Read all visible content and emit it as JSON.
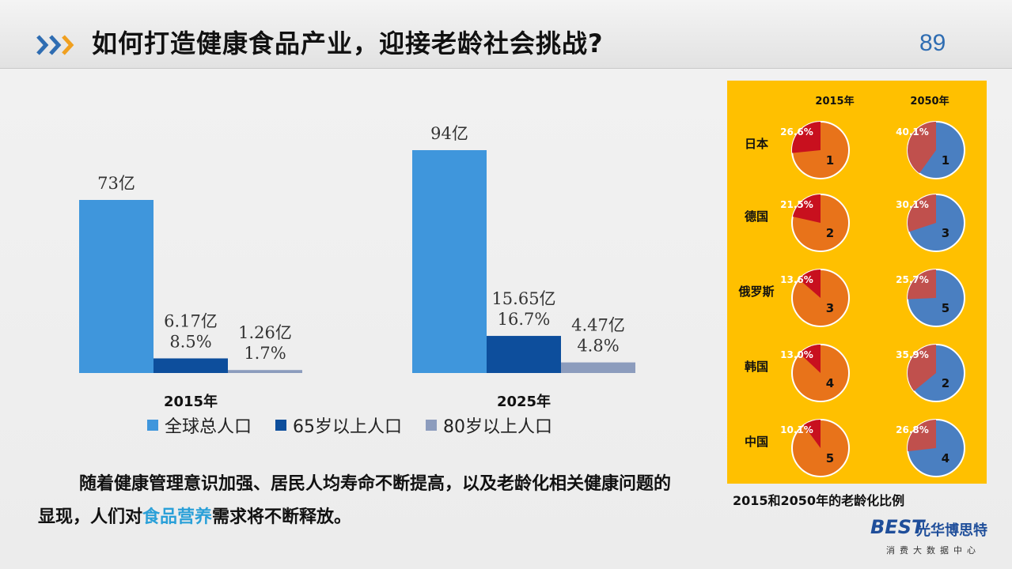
{
  "header": {
    "title": "如何打造健康食品产业，迎接老龄社会挑战?",
    "page_number": "89",
    "accent_color": "#2f6db2",
    "arrow_colors": [
      "#2f6db2",
      "#2f6db2",
      "#f0a020"
    ]
  },
  "chart_data": [
    {
      "type": "bar",
      "categories": [
        "2015年",
        "2025年"
      ],
      "series": [
        {
          "name": "全球总人口",
          "values": [
            73,
            94
          ],
          "color": "#3f96dc",
          "labels": [
            [
              "73亿"
            ],
            [
              "94亿"
            ]
          ]
        },
        {
          "name": "65岁以上人口",
          "values": [
            6.17,
            15.65
          ],
          "color": "#0d4e9c",
          "labels": [
            [
              "6.17亿",
              "8.5%"
            ],
            [
              "15.65亿",
              "16.7%"
            ]
          ]
        },
        {
          "name": "80岁以上人口",
          "values": [
            1.26,
            4.47
          ],
          "color": "#8c9cbd",
          "labels": [
            [
              "1.26亿",
              "1.7%"
            ],
            [
              "4.47亿",
              "4.8%"
            ]
          ]
        }
      ],
      "ylim": [
        0,
        100
      ],
      "grid": false,
      "legend": "bottom"
    },
    {
      "type": "pie",
      "columns": [
        "2015年",
        "2050年"
      ],
      "rows": [
        {
          "country": "日本",
          "2015": {
            "share": 26.6,
            "rank": "1"
          },
          "2050": {
            "share": 40.1,
            "rank": "1"
          }
        },
        {
          "country": "德国",
          "2015": {
            "share": 21.5,
            "rank": "2"
          },
          "2050": {
            "share": 30.1,
            "rank": "3"
          }
        },
        {
          "country": "俄罗斯",
          "2015": {
            "share": 13.6,
            "rank": "3"
          },
          "2050": {
            "share": 25.7,
            "rank": "5"
          }
        },
        {
          "country": "韩国",
          "2015": {
            "share": 13.0,
            "rank": "4"
          },
          "2050": {
            "share": 35.9,
            "rank": "2"
          }
        },
        {
          "country": "中国",
          "2015": {
            "share": 10.1,
            "rank": "5"
          },
          "2050": {
            "share": 26.8,
            "rank": "4"
          }
        }
      ],
      "colors": {
        "panel_bg": "#ffc000",
        "2015_base": "#e8731a",
        "2015_slice": "#c8101e",
        "2050_base": "#4a7fc1",
        "2050_slice": "#c0504d"
      },
      "caption": "2015和2050年的老龄化比例"
    }
  ],
  "summary": {
    "part1": "随着健康管理意识加强、居民人均寿命不断提高，以及老龄化相关健康问题的显现，人们对",
    "highlight": "食品营养",
    "part2": "需求将不断释放。",
    "highlight_color": "#2aa0d8"
  },
  "logo": {
    "mark": "BEST",
    "name": "光华博思特",
    "subtitle": "消费大数据中心"
  }
}
